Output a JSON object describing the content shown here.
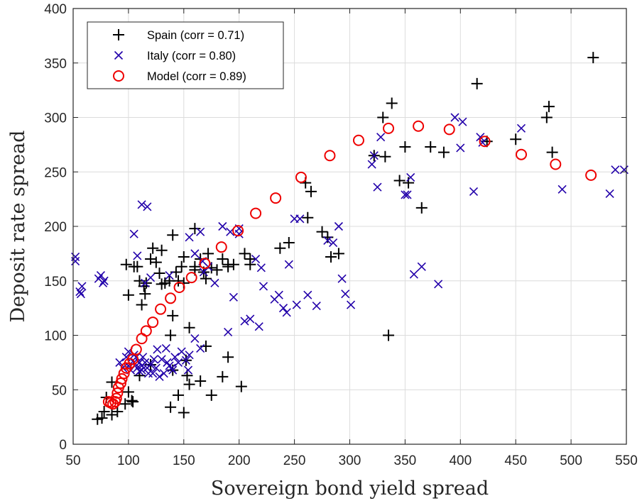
{
  "chart_data": {
    "type": "scatter",
    "xlabel": "Sovereign bond yield spread",
    "ylabel": "Deposit rate spread",
    "xlim": [
      50,
      550
    ],
    "ylim": [
      0,
      400
    ],
    "xticks": [
      50,
      100,
      150,
      200,
      250,
      300,
      350,
      400,
      450,
      500,
      550
    ],
    "yticks": [
      0,
      50,
      100,
      150,
      200,
      250,
      300,
      350,
      400
    ],
    "grid": true,
    "legend_position": "top-left",
    "series": [
      {
        "name": "Spain (corr = 0.71)",
        "marker": "plus",
        "color": "#000000",
        "points": [
          [
            72,
            23
          ],
          [
            76,
            24
          ],
          [
            78,
            30
          ],
          [
            80,
            43
          ],
          [
            85,
            57
          ],
          [
            85,
            27
          ],
          [
            90,
            30
          ],
          [
            97,
            37
          ],
          [
            100,
            48
          ],
          [
            103,
            40
          ],
          [
            104,
            39
          ],
          [
            98,
            165
          ],
          [
            105,
            163
          ],
          [
            108,
            163
          ],
          [
            110,
            150
          ],
          [
            112,
            128
          ],
          [
            114,
            145
          ],
          [
            116,
            148
          ],
          [
            120,
            170
          ],
          [
            122,
            180
          ],
          [
            125,
            167
          ],
          [
            128,
            157
          ],
          [
            130,
            178
          ],
          [
            133,
            148
          ],
          [
            137,
            150
          ],
          [
            140,
            192
          ],
          [
            140,
            118
          ],
          [
            143,
            158
          ],
          [
            145,
            150
          ],
          [
            148,
            163
          ],
          [
            150,
            172
          ],
          [
            152,
            77
          ],
          [
            153,
            63
          ],
          [
            155,
            107
          ],
          [
            160,
            198
          ],
          [
            160,
            163
          ],
          [
            165,
            170
          ],
          [
            168,
            158
          ],
          [
            170,
            152
          ],
          [
            172,
            175
          ],
          [
            175,
            162
          ],
          [
            180,
            160
          ],
          [
            185,
            170
          ],
          [
            190,
            163
          ],
          [
            195,
            165
          ],
          [
            205,
            175
          ],
          [
            210,
            165
          ],
          [
            237,
            180
          ],
          [
            245,
            185
          ],
          [
            260,
            240
          ],
          [
            262,
            208
          ],
          [
            265,
            232
          ],
          [
            275,
            195
          ],
          [
            280,
            190
          ],
          [
            283,
            172
          ],
          [
            290,
            175
          ],
          [
            322,
            265
          ],
          [
            330,
            300
          ],
          [
            332,
            264
          ],
          [
            338,
            313
          ],
          [
            345,
            242
          ],
          [
            350,
            273
          ],
          [
            353,
            240
          ],
          [
            365,
            217
          ],
          [
            373,
            273
          ],
          [
            385,
            268
          ],
          [
            415,
            331
          ],
          [
            424,
            278
          ],
          [
            450,
            280
          ],
          [
            478,
            300
          ],
          [
            480,
            310
          ],
          [
            483,
            268
          ],
          [
            520,
            355
          ],
          [
            138,
            100
          ],
          [
            145,
            45
          ],
          [
            150,
            29
          ],
          [
            155,
            55
          ],
          [
            165,
            58
          ],
          [
            170,
            90
          ],
          [
            175,
            45
          ],
          [
            185,
            62
          ],
          [
            190,
            80
          ],
          [
            202,
            53
          ],
          [
            138,
            34
          ],
          [
            335,
            100
          ],
          [
            100,
            137
          ],
          [
            115,
            138
          ],
          [
            130,
            147
          ],
          [
            150,
            148
          ],
          [
            160,
            160
          ],
          [
            190,
            165
          ],
          [
            210,
            170
          ],
          [
            110,
            63
          ],
          [
            120,
            73
          ],
          [
            140,
            68
          ]
        ]
      },
      {
        "name": "Italy (corr = 0.80)",
        "marker": "x",
        "color": "#2200aa",
        "points": [
          [
            52,
            172
          ],
          [
            52,
            168
          ],
          [
            56,
            140
          ],
          [
            57,
            138
          ],
          [
            58,
            145
          ],
          [
            73,
            152
          ],
          [
            75,
            155
          ],
          [
            77,
            148
          ],
          [
            78,
            150
          ],
          [
            105,
            193
          ],
          [
            108,
            173
          ],
          [
            112,
            220
          ],
          [
            115,
            148
          ],
          [
            117,
            218
          ],
          [
            120,
            153
          ],
          [
            137,
            155
          ],
          [
            155,
            190
          ],
          [
            160,
            175
          ],
          [
            165,
            195
          ],
          [
            168,
            158
          ],
          [
            172,
            163
          ],
          [
            178,
            148
          ],
          [
            185,
            200
          ],
          [
            190,
            103
          ],
          [
            192,
            195
          ],
          [
            195,
            135
          ],
          [
            200,
            198
          ],
          [
            200,
            193
          ],
          [
            205,
            113
          ],
          [
            210,
            115
          ],
          [
            215,
            170
          ],
          [
            218,
            108
          ],
          [
            220,
            162
          ],
          [
            222,
            145
          ],
          [
            232,
            133
          ],
          [
            236,
            137
          ],
          [
            240,
            125
          ],
          [
            243,
            121
          ],
          [
            245,
            165
          ],
          [
            250,
            207
          ],
          [
            252,
            128
          ],
          [
            255,
            207
          ],
          [
            262,
            137
          ],
          [
            270,
            127
          ],
          [
            280,
            187
          ],
          [
            285,
            185
          ],
          [
            290,
            200
          ],
          [
            293,
            152
          ],
          [
            296,
            138
          ],
          [
            301,
            128
          ],
          [
            320,
            257
          ],
          [
            322,
            265
          ],
          [
            325,
            236
          ],
          [
            328,
            282
          ],
          [
            350,
            229
          ],
          [
            352,
            229
          ],
          [
            355,
            245
          ],
          [
            358,
            156
          ],
          [
            365,
            163
          ],
          [
            380,
            147
          ],
          [
            395,
            300
          ],
          [
            400,
            272
          ],
          [
            402,
            296
          ],
          [
            412,
            232
          ],
          [
            418,
            282
          ],
          [
            420,
            277
          ],
          [
            455,
            290
          ],
          [
            492,
            234
          ],
          [
            535,
            230
          ],
          [
            540,
            252
          ],
          [
            548,
            252
          ],
          [
            92,
            75
          ],
          [
            95,
            70
          ],
          [
            98,
            80
          ],
          [
            100,
            85
          ],
          [
            100,
            72
          ],
          [
            102,
            68
          ],
          [
            105,
            75
          ],
          [
            107,
            80
          ],
          [
            108,
            70
          ],
          [
            110,
            75
          ],
          [
            110,
            67
          ],
          [
            112,
            72
          ],
          [
            113,
            80
          ],
          [
            115,
            75
          ],
          [
            117,
            70
          ],
          [
            118,
            65
          ],
          [
            120,
            73
          ],
          [
            122,
            65
          ],
          [
            123,
            78
          ],
          [
            125,
            70
          ],
          [
            126,
            87
          ],
          [
            128,
            62
          ],
          [
            130,
            78
          ],
          [
            132,
            65
          ],
          [
            134,
            88
          ],
          [
            135,
            75
          ],
          [
            137,
            72
          ],
          [
            139,
            70
          ],
          [
            140,
            68
          ],
          [
            142,
            80
          ],
          [
            145,
            75
          ],
          [
            148,
            85
          ],
          [
            152,
            77
          ],
          [
            154,
            68
          ],
          [
            155,
            82
          ],
          [
            160,
            97
          ],
          [
            165,
            88
          ],
          [
            167,
            168
          ],
          [
            112,
            68
          ],
          [
            105,
            82
          ]
        ]
      },
      {
        "name": "Model (corr = 0.89)",
        "marker": "circle",
        "color": "#ee0000",
        "points": [
          [
            82,
            39
          ],
          [
            84,
            38
          ],
          [
            86,
            37
          ],
          [
            88,
            39
          ],
          [
            89,
            42
          ],
          [
            90,
            47
          ],
          [
            91,
            52
          ],
          [
            93,
            56
          ],
          [
            94,
            60
          ],
          [
            96,
            65
          ],
          [
            98,
            70
          ],
          [
            101,
            74
          ],
          [
            104,
            78
          ],
          [
            107,
            87
          ],
          [
            112,
            97
          ],
          [
            116,
            104
          ],
          [
            122,
            112
          ],
          [
            129,
            124
          ],
          [
            138,
            134
          ],
          [
            146,
            144
          ],
          [
            157,
            153
          ],
          [
            169,
            166
          ],
          [
            184,
            181
          ],
          [
            199,
            196
          ],
          [
            215,
            212
          ],
          [
            233,
            226
          ],
          [
            256,
            245
          ],
          [
            282,
            265
          ],
          [
            308,
            279
          ],
          [
            335,
            290
          ],
          [
            362,
            292
          ],
          [
            390,
            289
          ],
          [
            422,
            278
          ],
          [
            455,
            266
          ],
          [
            486,
            257
          ],
          [
            518,
            247
          ]
        ]
      }
    ]
  }
}
